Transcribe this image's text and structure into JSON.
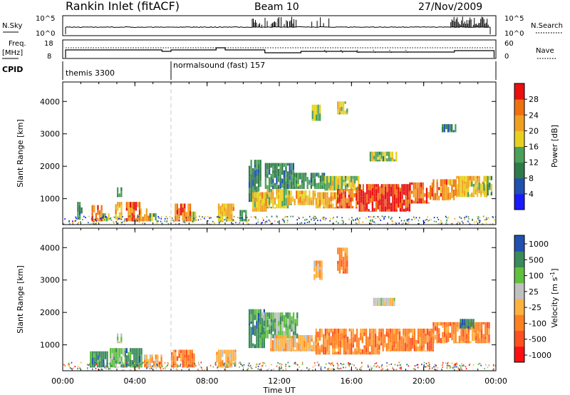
{
  "header": {
    "title": "Rankin Inlet (fitACF)",
    "beam": "Beam 10",
    "date": "27/Nov/2009"
  },
  "top_panels": {
    "nsky_label": "N.Sky",
    "nsky_ticks": [
      "10^5",
      "10^0"
    ],
    "nsky_right_ticks": [
      "10^5",
      "10^0"
    ],
    "nsearch_label": "N.Search",
    "freq_label": "Freq.",
    "freq_unit": "[MHz]",
    "freq_ticks": [
      "18",
      "8"
    ],
    "nave_ticks": [
      "60",
      "0"
    ],
    "nave_label": "Nave",
    "cpid_label": "CPID",
    "cpid_modes": [
      {
        "label": "themis 3300",
        "start_hour": 0
      },
      {
        "label": "normalsound (fast) 157",
        "start_hour": 6
      }
    ]
  },
  "x_axis": {
    "label": "Time UT",
    "ticks": [
      "00:00",
      "04:00",
      "08:00",
      "12:00",
      "16:00",
      "20:00",
      "00:00"
    ],
    "range_hours": [
      0,
      24
    ]
  },
  "colors": {
    "power": [
      "#1a1aff",
      "#2050b0",
      "#2f7a4a",
      "#4aa05a",
      "#e8d020",
      "#f0a020",
      "#f07010",
      "#e81010"
    ],
    "velocity": [
      "#ff1010",
      "#ff5020",
      "#ff8020",
      "#ffb040",
      "#c0c0c0",
      "#60c040",
      "#3a8a5a",
      "#2050b0"
    ]
  },
  "chart_data": [
    {
      "type": "heatmap",
      "name": "power",
      "ylabel": "Slant Range [km]",
      "yticks": [
        1000,
        2000,
        3000,
        4000
      ],
      "ylim": [
        200,
        4600
      ],
      "xlim_hours": [
        0,
        24
      ],
      "colorbar": {
        "label": "Power [dB]",
        "range": [
          0,
          32
        ],
        "ticks": [
          "4",
          "8",
          "12",
          "16",
          "20",
          "24",
          "28"
        ]
      },
      "regions": [
        {
          "t0": 0.8,
          "t1": 1.1,
          "r0": 350,
          "r1": 900,
          "v": 10
        },
        {
          "t0": 1.6,
          "t1": 2.2,
          "r0": 300,
          "r1": 800,
          "v": 22
        },
        {
          "t0": 2.2,
          "t1": 2.6,
          "r0": 300,
          "r1": 550,
          "v": 14
        },
        {
          "t0": 2.9,
          "t1": 3.3,
          "r0": 350,
          "r1": 900,
          "v": 18
        },
        {
          "t0": 3.0,
          "t1": 3.3,
          "r0": 1050,
          "r1": 1350,
          "v": 8
        },
        {
          "t0": 3.5,
          "t1": 4.3,
          "r0": 300,
          "r1": 900,
          "v": 24
        },
        {
          "t0": 4.3,
          "t1": 4.8,
          "r0": 300,
          "r1": 700,
          "v": 20
        },
        {
          "t0": 4.8,
          "t1": 5.2,
          "r0": 300,
          "r1": 550,
          "v": 12
        },
        {
          "t0": 6.2,
          "t1": 7.1,
          "r0": 300,
          "r1": 850,
          "v": 24
        },
        {
          "t0": 7.1,
          "t1": 7.4,
          "r0": 300,
          "r1": 600,
          "v": 14
        },
        {
          "t0": 8.6,
          "t1": 9.5,
          "r0": 300,
          "r1": 850,
          "v": 18
        },
        {
          "t0": 9.8,
          "t1": 10.2,
          "r0": 300,
          "r1": 650,
          "v": 10
        },
        {
          "t0": 10.3,
          "t1": 11.0,
          "r0": 900,
          "r1": 2200,
          "v": 8
        },
        {
          "t0": 10.5,
          "t1": 11.3,
          "r0": 600,
          "r1": 1200,
          "v": 18
        },
        {
          "t0": 11.2,
          "t1": 12.8,
          "r0": 1300,
          "r1": 2100,
          "v": 9
        },
        {
          "t0": 11.3,
          "t1": 12.5,
          "r0": 700,
          "r1": 1300,
          "v": 16
        },
        {
          "t0": 12.5,
          "t1": 14.0,
          "r0": 800,
          "r1": 1250,
          "v": 18
        },
        {
          "t0": 12.8,
          "t1": 14.5,
          "r0": 1300,
          "r1": 1800,
          "v": 10
        },
        {
          "t0": 14.0,
          "t1": 15.2,
          "r0": 700,
          "r1": 1200,
          "v": 20
        },
        {
          "t0": 14.5,
          "t1": 16.5,
          "r0": 1250,
          "r1": 1700,
          "v": 14
        },
        {
          "t0": 15.2,
          "t1": 16.3,
          "r0": 700,
          "r1": 1300,
          "v": 24
        },
        {
          "t0": 16.3,
          "t1": 19.2,
          "r0": 600,
          "r1": 1450,
          "v": 28
        },
        {
          "t0": 17.0,
          "t1": 18.5,
          "r0": 2150,
          "r1": 2450,
          "v": 14
        },
        {
          "t0": 19.2,
          "t1": 20.5,
          "r0": 850,
          "r1": 1500,
          "v": 24
        },
        {
          "t0": 20.5,
          "t1": 21.8,
          "r0": 950,
          "r1": 1600,
          "v": 22
        },
        {
          "t0": 21.8,
          "t1": 23.5,
          "r0": 1050,
          "r1": 1700,
          "v": 18
        },
        {
          "t0": 23.3,
          "t1": 23.8,
          "r0": 1100,
          "r1": 1700,
          "v": 12
        },
        {
          "t0": 21.0,
          "t1": 21.8,
          "r0": 3050,
          "r1": 3300,
          "v": 8
        },
        {
          "t0": 15.2,
          "t1": 15.8,
          "r0": 3600,
          "r1": 4000,
          "v": 16
        },
        {
          "t0": 13.8,
          "t1": 14.3,
          "r0": 3400,
          "r1": 3900,
          "v": 14
        }
      ]
    },
    {
      "type": "heatmap",
      "name": "velocity",
      "ylabel": "Slant Range [km]",
      "yticks": [
        1000,
        2000,
        3000,
        4000
      ],
      "ylim": [
        200,
        4600
      ],
      "xlim_hours": [
        0,
        24
      ],
      "colorbar": {
        "label": "Velocity [m s^-1]",
        "ticks": [
          "1000",
          "500",
          "100",
          "25",
          "-25",
          "-100",
          "-500",
          "-1000"
        ]
      },
      "regions": [
        {
          "t0": 1.5,
          "t1": 2.5,
          "r0": 300,
          "r1": 800,
          "v": 6
        },
        {
          "t0": 2.6,
          "t1": 3.5,
          "r0": 300,
          "r1": 900,
          "v": 5
        },
        {
          "t0": 3.0,
          "t1": 3.3,
          "r0": 1050,
          "r1": 1350,
          "v": 4
        },
        {
          "t0": 3.5,
          "t1": 4.4,
          "r0": 300,
          "r1": 900,
          "v": 6
        },
        {
          "t0": 4.5,
          "t1": 5.5,
          "r0": 300,
          "r1": 700,
          "v": 3
        },
        {
          "t0": 6.0,
          "t1": 7.3,
          "r0": 300,
          "r1": 850,
          "v": 2
        },
        {
          "t0": 8.5,
          "t1": 9.6,
          "r0": 300,
          "r1": 850,
          "v": 3
        },
        {
          "t0": 10.3,
          "t1": 11.2,
          "r0": 900,
          "r1": 2100,
          "v": 6
        },
        {
          "t0": 11.0,
          "t1": 13.0,
          "r0": 1200,
          "r1": 2000,
          "v": 5
        },
        {
          "t0": 11.5,
          "t1": 14.0,
          "r0": 800,
          "r1": 1300,
          "v": 3
        },
        {
          "t0": 14.0,
          "t1": 17.5,
          "r0": 700,
          "r1": 1500,
          "v": 2
        },
        {
          "t0": 17.5,
          "t1": 20.5,
          "r0": 800,
          "r1": 1500,
          "v": 2
        },
        {
          "t0": 17.2,
          "t1": 18.4,
          "r0": 2200,
          "r1": 2450,
          "v": 4
        },
        {
          "t0": 20.5,
          "t1": 23.6,
          "r0": 1050,
          "r1": 1700,
          "v": 2
        },
        {
          "t0": 15.2,
          "t1": 15.8,
          "r0": 3200,
          "r1": 4000,
          "v": 2
        },
        {
          "t0": 13.9,
          "t1": 14.4,
          "r0": 3000,
          "r1": 3600,
          "v": 3
        },
        {
          "t0": 22.0,
          "t1": 22.8,
          "r0": 1500,
          "r1": 1800,
          "v": 6
        }
      ]
    }
  ]
}
